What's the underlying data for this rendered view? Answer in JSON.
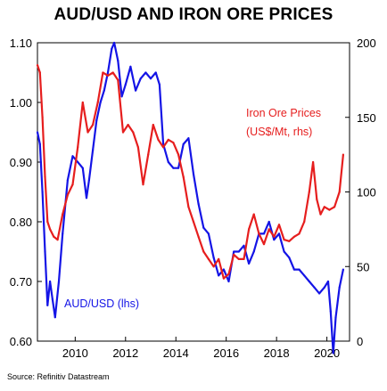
{
  "chart_data": {
    "type": "line",
    "title": "AUD/USD AND IRON ORE PRICES",
    "source": "Source: Refinitiv Datastream",
    "left_axis": {
      "ylim": [
        0.6,
        1.1
      ],
      "ticks": [
        "0.60",
        "0.70",
        "0.80",
        "0.90",
        "1.00",
        "1.10"
      ]
    },
    "right_axis": {
      "ylim": [
        0,
        200
      ],
      "ticks": [
        "0",
        "50",
        "100",
        "150",
        "200"
      ]
    },
    "x_axis": {
      "xlim": [
        2008.5,
        2020.9
      ],
      "ticks": [
        "2010",
        "2012",
        "2014",
        "2016",
        "2018",
        "2020"
      ]
    },
    "series": [
      {
        "name": "AUD/USD (lhs)",
        "axis": "left",
        "color": "#1414e6",
        "x": [
          2008.5,
          2008.6,
          2008.7,
          2008.8,
          2008.9,
          2009.0,
          2009.1,
          2009.2,
          2009.35,
          2009.5,
          2009.7,
          2009.9,
          2010.1,
          2010.3,
          2010.45,
          2010.55,
          2010.7,
          2010.85,
          2011.0,
          2011.15,
          2011.3,
          2011.45,
          2011.55,
          2011.7,
          2011.85,
          2012.0,
          2012.2,
          2012.4,
          2012.6,
          2012.8,
          2013.0,
          2013.2,
          2013.35,
          2013.5,
          2013.7,
          2013.9,
          2014.1,
          2014.3,
          2014.5,
          2014.7,
          2014.9,
          2015.1,
          2015.3,
          2015.5,
          2015.7,
          2015.9,
          2016.1,
          2016.3,
          2016.5,
          2016.7,
          2016.9,
          2017.1,
          2017.3,
          2017.5,
          2017.7,
          2017.9,
          2018.1,
          2018.3,
          2018.5,
          2018.7,
          2018.9,
          2019.1,
          2019.3,
          2019.5,
          2019.7,
          2019.9,
          2020.05,
          2020.15,
          2020.25,
          2020.35,
          2020.5,
          2020.65
        ],
        "values": [
          0.95,
          0.93,
          0.85,
          0.75,
          0.66,
          0.7,
          0.67,
          0.64,
          0.7,
          0.78,
          0.87,
          0.91,
          0.9,
          0.89,
          0.84,
          0.87,
          0.92,
          0.97,
          1.0,
          1.02,
          1.05,
          1.09,
          1.1,
          1.07,
          1.01,
          1.03,
          1.06,
          1.02,
          1.04,
          1.05,
          1.04,
          1.05,
          1.03,
          0.93,
          0.9,
          0.89,
          0.89,
          0.93,
          0.94,
          0.88,
          0.83,
          0.79,
          0.78,
          0.74,
          0.71,
          0.72,
          0.7,
          0.75,
          0.75,
          0.76,
          0.73,
          0.75,
          0.78,
          0.78,
          0.8,
          0.77,
          0.78,
          0.75,
          0.74,
          0.72,
          0.72,
          0.71,
          0.7,
          0.69,
          0.68,
          0.69,
          0.7,
          0.65,
          0.58,
          0.64,
          0.69,
          0.72
        ]
      },
      {
        "name": "Iron Ore Prices (US$/Mt, rhs)",
        "axis": "right",
        "color": "#e61e1e",
        "x": [
          2008.5,
          2008.6,
          2008.7,
          2008.8,
          2008.9,
          2009.0,
          2009.15,
          2009.3,
          2009.5,
          2009.7,
          2009.9,
          2010.1,
          2010.3,
          2010.5,
          2010.7,
          2010.9,
          2011.1,
          2011.3,
          2011.5,
          2011.7,
          2011.9,
          2012.1,
          2012.3,
          2012.5,
          2012.7,
          2012.9,
          2013.1,
          2013.3,
          2013.5,
          2013.7,
          2013.9,
          2014.1,
          2014.3,
          2014.5,
          2014.7,
          2014.9,
          2015.1,
          2015.3,
          2015.5,
          2015.7,
          2015.9,
          2016.1,
          2016.3,
          2016.5,
          2016.7,
          2016.9,
          2017.1,
          2017.3,
          2017.5,
          2017.7,
          2017.9,
          2018.1,
          2018.3,
          2018.5,
          2018.7,
          2018.9,
          2019.1,
          2019.3,
          2019.45,
          2019.6,
          2019.75,
          2019.9,
          2020.1,
          2020.3,
          2020.5,
          2020.65
        ],
        "values": [
          185,
          180,
          150,
          110,
          80,
          75,
          70,
          68,
          85,
          98,
          105,
          130,
          160,
          140,
          145,
          160,
          180,
          178,
          180,
          175,
          140,
          145,
          140,
          130,
          105,
          125,
          145,
          135,
          130,
          135,
          133,
          125,
          110,
          90,
          80,
          70,
          60,
          55,
          50,
          55,
          42,
          45,
          58,
          55,
          55,
          75,
          85,
          72,
          65,
          75,
          70,
          78,
          68,
          67,
          70,
          72,
          80,
          100,
          120,
          95,
          85,
          90,
          88,
          90,
          100,
          125
        ]
      }
    ],
    "annotations": {
      "aud_label": "AUD/USD (lhs)",
      "iron_label_1": "Iron Ore Prices",
      "iron_label_2": "(US$/Mt, rhs)"
    },
    "grid": false
  }
}
